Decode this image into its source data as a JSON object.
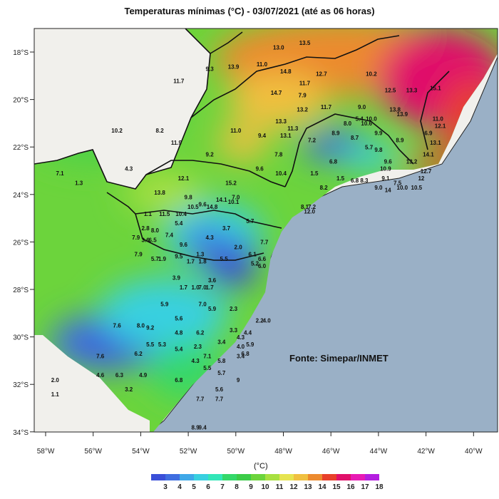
{
  "title": "Temperaturas mínimas (°C) - 03/07/2021 (até as 06 horas)",
  "source": "Fonte: Simepar/INMET",
  "legend": {
    "unit": "(°C)",
    "levels": [
      "3",
      "4",
      "5",
      "6",
      "7",
      "8",
      "9",
      "10",
      "11",
      "12",
      "13",
      "14",
      "15",
      "16",
      "17",
      "18"
    ],
    "colors": [
      "#3a4fd8",
      "#3f6ee0",
      "#3fa8e8",
      "#38d0e0",
      "#32e6b8",
      "#34d86a",
      "#3ccc48",
      "#6cd43c",
      "#a8e040",
      "#e6e450",
      "#f0c040",
      "#ec8a2e",
      "#e8402a",
      "#e0106a",
      "#e81ab4",
      "#b41ee0"
    ]
  },
  "axes": {
    "lon_labels": [
      "58°W",
      "56°W",
      "54°W",
      "52°W",
      "50°W",
      "48°W",
      "46°W",
      "44°W",
      "42°W",
      "40°W"
    ],
    "lat_labels": [
      "18°S",
      "20°S",
      "22°S",
      "24°S",
      "26°S",
      "28°S",
      "30°S",
      "32°S",
      "34°S"
    ]
  },
  "stations": [
    {
      "lon": -51.1,
      "lat": -18.8,
      "v": "9.3"
    },
    {
      "lon": -50.1,
      "lat": -18.7,
      "v": "13.9"
    },
    {
      "lon": -48.9,
      "lat": -18.6,
      "v": "11.0"
    },
    {
      "lon": -48.2,
      "lat": -17.9,
      "v": "13.0"
    },
    {
      "lon": -47.1,
      "lat": -17.7,
      "v": "13.5"
    },
    {
      "lon": -47.9,
      "lat": -18.9,
      "v": "14.8"
    },
    {
      "lon": -46.4,
      "lat": -19.0,
      "v": "12.7"
    },
    {
      "lon": -44.3,
      "lat": -19.0,
      "v": "10.2"
    },
    {
      "lon": -52.4,
      "lat": -19.3,
      "v": "11.7"
    },
    {
      "lon": -47.1,
      "lat": -19.4,
      "v": "11.7"
    },
    {
      "lon": -48.3,
      "lat": -19.8,
      "v": "14.7"
    },
    {
      "lon": -47.2,
      "lat": -19.9,
      "v": "7.9"
    },
    {
      "lon": -43.5,
      "lat": -19.7,
      "v": "12.5"
    },
    {
      "lon": -42.6,
      "lat": -19.7,
      "v": "13.3"
    },
    {
      "lon": -41.6,
      "lat": -19.6,
      "v": "15.1"
    },
    {
      "lon": -47.2,
      "lat": -20.5,
      "v": "13.2"
    },
    {
      "lon": -46.2,
      "lat": -20.4,
      "v": "11.7"
    },
    {
      "lon": -44.7,
      "lat": -20.4,
      "v": "9.0"
    },
    {
      "lon": -43.3,
      "lat": -20.5,
      "v": "13.8"
    },
    {
      "lon": -43.0,
      "lat": -20.7,
      "v": "13.9"
    },
    {
      "lon": -44.8,
      "lat": -20.9,
      "v": "5.4"
    },
    {
      "lon": -44.3,
      "lat": -20.9,
      "v": "10.0"
    },
    {
      "lon": -45.3,
      "lat": -21.1,
      "v": "8.0"
    },
    {
      "lon": -44.5,
      "lat": -21.1,
      "v": "10.6"
    },
    {
      "lon": -48.1,
      "lat": -21.0,
      "v": "13.3"
    },
    {
      "lon": -47.6,
      "lat": -21.3,
      "v": "11.3"
    },
    {
      "lon": -41.5,
      "lat": -20.9,
      "v": "11.0"
    },
    {
      "lon": -41.4,
      "lat": -21.2,
      "v": "12.1"
    },
    {
      "lon": -41.9,
      "lat": -21.5,
      "v": "6.9"
    },
    {
      "lon": -55.0,
      "lat": -21.4,
      "v": "10.2"
    },
    {
      "lon": -53.2,
      "lat": -21.4,
      "v": "8.2"
    },
    {
      "lon": -50.0,
      "lat": -21.4,
      "v": "11.0"
    },
    {
      "lon": -48.9,
      "lat": -21.6,
      "v": "9.4"
    },
    {
      "lon": -47.9,
      "lat": -21.6,
      "v": "13.1"
    },
    {
      "lon": -46.8,
      "lat": -21.8,
      "v": "7.2"
    },
    {
      "lon": -45.8,
      "lat": -21.5,
      "v": "8.9"
    },
    {
      "lon": -45.0,
      "lat": -21.7,
      "v": "8.7"
    },
    {
      "lon": -44.0,
      "lat": -21.5,
      "v": "9.9"
    },
    {
      "lon": -43.1,
      "lat": -21.8,
      "v": "8.9"
    },
    {
      "lon": -52.5,
      "lat": -21.9,
      "v": "11.9"
    },
    {
      "lon": -44.4,
      "lat": -22.1,
      "v": "5.7"
    },
    {
      "lon": -44.0,
      "lat": -22.2,
      "v": "9.8"
    },
    {
      "lon": -41.6,
      "lat": -21.9,
      "v": "13.1"
    },
    {
      "lon": -51.1,
      "lat": -22.4,
      "v": "9.2"
    },
    {
      "lon": -48.2,
      "lat": -22.4,
      "v": "7.8"
    },
    {
      "lon": -45.9,
      "lat": -22.7,
      "v": "6.8"
    },
    {
      "lon": -43.6,
      "lat": -22.7,
      "v": "9.6"
    },
    {
      "lon": -43.7,
      "lat": -23.0,
      "v": "10.9"
    },
    {
      "lon": -42.6,
      "lat": -22.7,
      "v": "13.2"
    },
    {
      "lon": -41.9,
      "lat": -22.4,
      "v": "14.1"
    },
    {
      "lon": -54.5,
      "lat": -23.0,
      "v": "4.3"
    },
    {
      "lon": -49.0,
      "lat": -23.0,
      "v": "9.6"
    },
    {
      "lon": -48.1,
      "lat": -23.2,
      "v": "10.4"
    },
    {
      "lon": -46.7,
      "lat": -23.2,
      "v": "1.5"
    },
    {
      "lon": -45.6,
      "lat": -23.4,
      "v": "1.5"
    },
    {
      "lon": -45.0,
      "lat": -23.5,
      "v": "6.8"
    },
    {
      "lon": -44.6,
      "lat": -23.5,
      "v": "8.3"
    },
    {
      "lon": -43.7,
      "lat": -23.4,
      "v": "9.1"
    },
    {
      "lon": -43.2,
      "lat": -23.6,
      "v": "7.5"
    },
    {
      "lon": -42.2,
      "lat": -23.4,
      "v": "12"
    },
    {
      "lon": -42.0,
      "lat": -23.1,
      "v": "12.7"
    },
    {
      "lon": -57.4,
      "lat": -23.2,
      "v": "7.1"
    },
    {
      "lon": -52.2,
      "lat": -23.4,
      "v": "12.1"
    },
    {
      "lon": -50.2,
      "lat": -23.6,
      "v": "15.2"
    },
    {
      "lon": -56.6,
      "lat": -23.6,
      "v": "1.3"
    },
    {
      "lon": -43.0,
      "lat": -23.8,
      "v": "10.0"
    },
    {
      "lon": -42.4,
      "lat": -23.8,
      "v": "10.5"
    },
    {
      "lon": -44.0,
      "lat": -23.8,
      "v": "9.0"
    },
    {
      "lon": -43.6,
      "lat": -23.9,
      "v": "14"
    },
    {
      "lon": -46.3,
      "lat": -23.8,
      "v": "8.2"
    },
    {
      "lon": -53.2,
      "lat": -24.0,
      "v": "13.8"
    },
    {
      "lon": -52.0,
      "lat": -24.2,
      "v": "9.8"
    },
    {
      "lon": -51.4,
      "lat": -24.5,
      "v": "9.6"
    },
    {
      "lon": -50.6,
      "lat": -24.3,
      "v": "14.1"
    },
    {
      "lon": -50.0,
      "lat": -24.2,
      "v": "7.0"
    },
    {
      "lon": -51.8,
      "lat": -24.6,
      "v": "10.5"
    },
    {
      "lon": -51.0,
      "lat": -24.6,
      "v": "14.8"
    },
    {
      "lon": -50.1,
      "lat": -24.4,
      "v": "10.1"
    },
    {
      "lon": -47.1,
      "lat": -24.6,
      "v": "8.1"
    },
    {
      "lon": -46.8,
      "lat": -24.6,
      "v": "7.2"
    },
    {
      "lon": -46.9,
      "lat": -24.8,
      "v": "12.0"
    },
    {
      "lon": -53.7,
      "lat": -24.9,
      "v": "1.1"
    },
    {
      "lon": -53.0,
      "lat": -24.9,
      "v": "11.5"
    },
    {
      "lon": -52.3,
      "lat": -24.9,
      "v": "10.4"
    },
    {
      "lon": -52.4,
      "lat": -25.3,
      "v": "5.4"
    },
    {
      "lon": -53.8,
      "lat": -25.5,
      "v": "2.8"
    },
    {
      "lon": -53.4,
      "lat": -25.6,
      "v": "8.0"
    },
    {
      "lon": -52.8,
      "lat": -25.8,
      "v": "7.4"
    },
    {
      "lon": -49.4,
      "lat": -25.2,
      "v": "5.7"
    },
    {
      "lon": -50.4,
      "lat": -25.5,
      "v": "3.7"
    },
    {
      "lon": -51.1,
      "lat": -25.9,
      "v": "4.3"
    },
    {
      "lon": -54.2,
      "lat": -25.9,
      "v": "7.9"
    },
    {
      "lon": -53.8,
      "lat": -26.0,
      "v": "3.6"
    },
    {
      "lon": -53.5,
      "lat": -26.0,
      "v": "6.5"
    },
    {
      "lon": -52.2,
      "lat": -26.2,
      "v": "9.6"
    },
    {
      "lon": -49.9,
      "lat": -26.3,
      "v": "2.0"
    },
    {
      "lon": -48.8,
      "lat": -26.1,
      "v": "7.7"
    },
    {
      "lon": -54.1,
      "lat": -26.6,
      "v": "7.9"
    },
    {
      "lon": -53.4,
      "lat": -26.8,
      "v": "5.7"
    },
    {
      "lon": -53.1,
      "lat": -26.8,
      "v": "1.9"
    },
    {
      "lon": -52.4,
      "lat": -26.7,
      "v": "9.5"
    },
    {
      "lon": -51.5,
      "lat": -26.6,
      "v": "1.3"
    },
    {
      "lon": -50.5,
      "lat": -26.8,
      "v": "5.5"
    },
    {
      "lon": -49.3,
      "lat": -26.6,
      "v": "6.1"
    },
    {
      "lon": -48.9,
      "lat": -26.8,
      "v": "6.6"
    },
    {
      "lon": -51.9,
      "lat": -26.9,
      "v": "1.7"
    },
    {
      "lon": -51.4,
      "lat": -26.9,
      "v": "1.8"
    },
    {
      "lon": -49.2,
      "lat": -27.0,
      "v": "5.2"
    },
    {
      "lon": -48.9,
      "lat": -27.1,
      "v": "6.0"
    },
    {
      "lon": -52.5,
      "lat": -27.6,
      "v": "3.9"
    },
    {
      "lon": -51.0,
      "lat": -27.7,
      "v": "3.6"
    },
    {
      "lon": -52.2,
      "lat": -28.0,
      "v": "1.7"
    },
    {
      "lon": -51.7,
      "lat": -28.0,
      "v": "1.0"
    },
    {
      "lon": -51.1,
      "lat": -28.0,
      "v": "1.7"
    },
    {
      "lon": -51.4,
      "lat": -28.0,
      "v": "7.0"
    },
    {
      "lon": -53.0,
      "lat": -28.7,
      "v": "5.9"
    },
    {
      "lon": -51.4,
      "lat": -28.7,
      "v": "7.0"
    },
    {
      "lon": -51.0,
      "lat": -28.9,
      "v": "5.9"
    },
    {
      "lon": -50.1,
      "lat": -28.9,
      "v": "2.3"
    },
    {
      "lon": -52.4,
      "lat": -29.3,
      "v": "5.6"
    },
    {
      "lon": -49.0,
      "lat": -29.4,
      "v": "2.2"
    },
    {
      "lon": -48.7,
      "lat": -29.4,
      "v": "4.0"
    },
    {
      "lon": -55.0,
      "lat": -29.6,
      "v": "7.6"
    },
    {
      "lon": -54.0,
      "lat": -29.6,
      "v": "8.0"
    },
    {
      "lon": -53.6,
      "lat": -29.7,
      "v": "9.2"
    },
    {
      "lon": -50.1,
      "lat": -29.8,
      "v": "3.3"
    },
    {
      "lon": -49.5,
      "lat": -29.9,
      "v": "4.4"
    },
    {
      "lon": -52.4,
      "lat": -29.9,
      "v": "4.8"
    },
    {
      "lon": -51.5,
      "lat": -29.9,
      "v": "6.2"
    },
    {
      "lon": -49.8,
      "lat": -30.1,
      "v": "4.3"
    },
    {
      "lon": -50.6,
      "lat": -30.3,
      "v": "3.4"
    },
    {
      "lon": -49.4,
      "lat": -30.4,
      "v": "5.9"
    },
    {
      "lon": -53.6,
      "lat": -30.4,
      "v": "5.5"
    },
    {
      "lon": -53.1,
      "lat": -30.4,
      "v": "5.3"
    },
    {
      "lon": -52.4,
      "lat": -30.6,
      "v": "5.4"
    },
    {
      "lon": -51.6,
      "lat": -30.5,
      "v": "2.3"
    },
    {
      "lon": -49.8,
      "lat": -30.5,
      "v": "4.0"
    },
    {
      "lon": -49.6,
      "lat": -30.8,
      "v": "6.8"
    },
    {
      "lon": -55.7,
      "lat": -30.9,
      "v": "7.6"
    },
    {
      "lon": -54.1,
      "lat": -30.8,
      "v": "6.2"
    },
    {
      "lon": -51.2,
      "lat": -30.9,
      "v": "7.1"
    },
    {
      "lon": -50.6,
      "lat": -31.1,
      "v": "5.8"
    },
    {
      "lon": -49.8,
      "lat": -30.9,
      "v": "3.4"
    },
    {
      "lon": -51.7,
      "lat": -31.1,
      "v": "4.3"
    },
    {
      "lon": -55.7,
      "lat": -31.7,
      "v": "4.6"
    },
    {
      "lon": -54.9,
      "lat": -31.7,
      "v": "6.3"
    },
    {
      "lon": -53.9,
      "lat": -31.7,
      "v": "4.9"
    },
    {
      "lon": -51.2,
      "lat": -31.4,
      "v": "5.5"
    },
    {
      "lon": -50.6,
      "lat": -31.6,
      "v": "5.7"
    },
    {
      "lon": -52.4,
      "lat": -31.9,
      "v": "6.8"
    },
    {
      "lon": -57.6,
      "lat": -31.9,
      "v": "2.0"
    },
    {
      "lon": -49.9,
      "lat": -31.9,
      "v": "9"
    },
    {
      "lon": -54.5,
      "lat": -32.3,
      "v": "3.2"
    },
    {
      "lon": -50.7,
      "lat": -32.3,
      "v": "5.6"
    },
    {
      "lon": -57.6,
      "lat": -32.5,
      "v": "1.1"
    },
    {
      "lon": -51.5,
      "lat": -32.7,
      "v": "7.7"
    },
    {
      "lon": -50.7,
      "lat": -32.7,
      "v": "7.7"
    },
    {
      "lon": -51.7,
      "lat": -33.9,
      "v": "8.9"
    },
    {
      "lon": -51.4,
      "lat": -33.9,
      "v": "9.4"
    }
  ]
}
